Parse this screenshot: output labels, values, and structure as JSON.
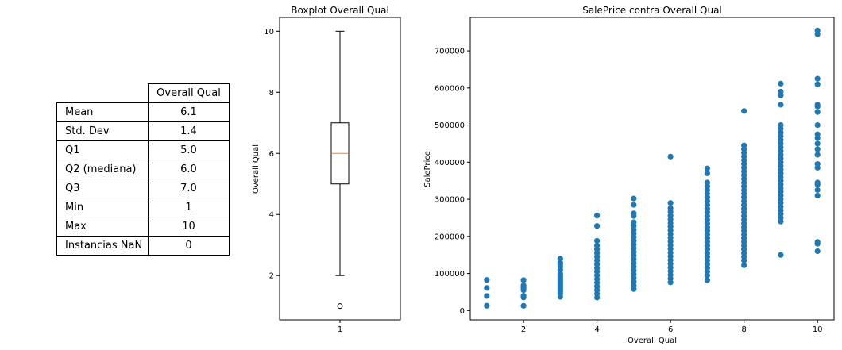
{
  "stats_table": {
    "column_header": "Overall Qual",
    "rows": [
      {
        "label": "Mean",
        "value": "6.1"
      },
      {
        "label": "Std. Dev",
        "value": "1.4"
      },
      {
        "label": "Q1",
        "value": "5.0"
      },
      {
        "label": "Q2 (mediana)",
        "value": "6.0"
      },
      {
        "label": "Q3",
        "value": "7.0"
      },
      {
        "label": "Min",
        "value": "1"
      },
      {
        "label": "Max",
        "value": "10"
      },
      {
        "label": "Instancias NaN",
        "value": "0"
      }
    ]
  },
  "chart_data": [
    {
      "type": "box",
      "title": "Boxplot Overall Qual",
      "xlabel": "",
      "ylabel": "Overall Qual",
      "categories": [
        "1"
      ],
      "whisker_low": 2,
      "q1": 5,
      "median": 6,
      "q3": 7,
      "whisker_high": 10,
      "outliers": [
        1
      ],
      "ylim": [
        0.55,
        10.45
      ],
      "yticks": [
        2,
        4,
        6,
        8,
        10
      ],
      "box_color": "#000000",
      "median_color": "#ff7f0e"
    },
    {
      "type": "scatter",
      "title": "SalePrice contra Overall Qual",
      "xlabel": "Overall Qual",
      "ylabel": "SalePrice",
      "xlim": [
        0.55,
        10.45
      ],
      "ylim": [
        -25000,
        790000
      ],
      "xticks": [
        2,
        4,
        6,
        8,
        10
      ],
      "yticks": [
        0,
        100000,
        200000,
        300000,
        400000,
        500000,
        600000,
        700000
      ],
      "color": "#1f77b4",
      "points": {
        "1": [
          13000,
          39300,
          61000,
          82500
        ],
        "2": [
          12789,
          35311,
          40000,
          55000,
          60000,
          64000,
          68000,
          82000
        ],
        "3": [
          37000,
          45000,
          50000,
          55000,
          60000,
          65000,
          70000,
          75000,
          80000,
          85000,
          90000,
          95000,
          100000,
          110000,
          118000,
          125000,
          130000,
          140000
        ],
        "4": [
          35000,
          45000,
          55000,
          65000,
          75000,
          85000,
          95000,
          105000,
          115000,
          125000,
          135000,
          145000,
          155000,
          165000,
          175000,
          188000,
          228000,
          256000
        ],
        "5": [
          58000,
          68000,
          78000,
          88000,
          98000,
          108000,
          118000,
          128000,
          138000,
          148000,
          158000,
          168000,
          178000,
          188000,
          198000,
          208000,
          218000,
          228000,
          238000,
          255000,
          262000,
          285000,
          302000
        ],
        "6": [
          76000,
          86000,
          96000,
          106000,
          116000,
          126000,
          136000,
          146000,
          156000,
          166000,
          176000,
          186000,
          196000,
          206000,
          216000,
          226000,
          236000,
          246000,
          256000,
          266000,
          276000,
          290000,
          415000
        ],
        "7": [
          82000,
          95000,
          105000,
          115000,
          125000,
          135000,
          145000,
          155000,
          165000,
          175000,
          185000,
          195000,
          205000,
          215000,
          225000,
          235000,
          245000,
          255000,
          265000,
          275000,
          285000,
          295000,
          305000,
          315000,
          325000,
          335000,
          345000,
          370000,
          383000
        ],
        "8": [
          122000,
          135000,
          145000,
          155000,
          165000,
          175000,
          185000,
          195000,
          205000,
          215000,
          225000,
          235000,
          245000,
          255000,
          265000,
          275000,
          285000,
          295000,
          305000,
          315000,
          325000,
          335000,
          345000,
          355000,
          365000,
          375000,
          385000,
          395000,
          405000,
          415000,
          425000,
          435000,
          445000,
          538000
        ],
        "9": [
          150000,
          240000,
          250000,
          260000,
          270000,
          280000,
          290000,
          300000,
          310000,
          320000,
          330000,
          340000,
          350000,
          360000,
          370000,
          380000,
          390000,
          400000,
          410000,
          420000,
          430000,
          440000,
          450000,
          460000,
          470000,
          480000,
          490000,
          500000,
          555000,
          580000,
          590000,
          611657
        ],
        "10": [
          160000,
          180000,
          185000,
          310000,
          325000,
          340000,
          345000,
          385000,
          395000,
          420000,
          435000,
          450000,
          465000,
          475000,
          500000,
          535000,
          550000,
          555000,
          610000,
          625000,
          745000,
          755000
        ]
      }
    }
  ]
}
